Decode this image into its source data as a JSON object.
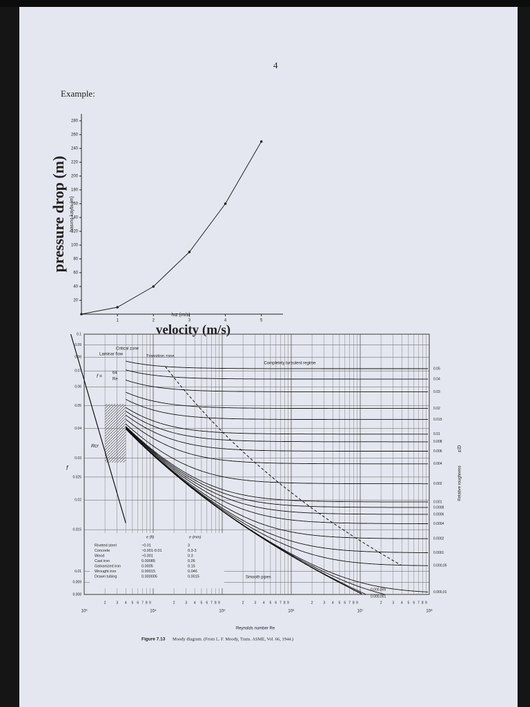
{
  "page_number": "4",
  "example_label": "Example:",
  "chart_data": [
    {
      "type": "line",
      "y_label": "pressure drop (m)",
      "y_label_small": "basınç kaybı (m)",
      "x_label": "velocity (m/s)",
      "x_label_small": "hız (m/s)",
      "x": [
        0,
        1,
        2,
        3,
        4,
        5
      ],
      "values": [
        0,
        10,
        40,
        90,
        160,
        250
      ],
      "color": "#222",
      "xlim": [
        0,
        5.6
      ],
      "ylim": [
        0,
        290
      ],
      "xticks": [
        1,
        2,
        3,
        4,
        5
      ],
      "yticks": [
        20,
        40,
        60,
        80,
        100,
        120,
        140,
        160,
        180,
        200,
        220,
        240,
        260,
        280
      ]
    },
    {
      "type": "moody",
      "log_scale": true,
      "grid": true,
      "x_label": "Reynolds number Re",
      "y_label": "f",
      "y2_label": "Relative roughness",
      "y2_label_symbol": "ε/D",
      "xlim": [
        1000,
        100000000
      ],
      "ylim": [
        0.008,
        0.1
      ],
      "xticks": [
        {
          "value": 1000,
          "label": "10³"
        },
        {
          "value": 10000,
          "label": "10⁴"
        },
        {
          "value": 100000,
          "label": "10⁵"
        },
        {
          "value": 1000000,
          "label": "10⁶"
        },
        {
          "value": 10000000,
          "label": "10⁷"
        },
        {
          "value": 100000000,
          "label": "10⁸"
        }
      ],
      "minor_tick_digits": [
        2,
        3,
        4,
        5,
        6,
        7,
        8,
        9
      ],
      "yticks": [
        0.1,
        0.09,
        0.08,
        0.07,
        0.06,
        0.05,
        0.04,
        0.03,
        0.025,
        0.02,
        0.015,
        0.01,
        0.009,
        0.008
      ],
      "roughness": [
        0.05,
        0.04,
        0.03,
        0.02,
        0.015,
        0.01,
        0.008,
        0.006,
        0.004,
        0.002,
        0.001,
        0.0008,
        0.0006,
        0.0004,
        0.0002,
        0.0001,
        {
          "value": 5e-05,
          "label": "0.000,05"
        },
        {
          "value": 1e-05,
          "label": "0.000,01"
        },
        {
          "value": 5e-06,
          "label": "0.000,005"
        },
        {
          "value": 1e-06,
          "label": "0.000,001"
        }
      ],
      "laminar_label": "Laminar flow",
      "critical_label": "Critical zone",
      "transition_label": "Transition zone",
      "turbulent_label": "Completely turbulent regime",
      "laminar_formula_f": "f =",
      "laminar_coefficient": 64,
      "laminar_formula_re": "Re",
      "critical_re_label": "Rcr",
      "smooth_label": "Smooth pipes",
      "table": {
        "headers": [
          "e (ft)",
          "e (mm)"
        ],
        "rows": [
          [
            "Riveted steel",
            "~0.01",
            "3"
          ],
          [
            "Concrete",
            "~0.001-0.01",
            "0.3-3"
          ],
          [
            "Wood",
            "~0.001",
            "0.3"
          ],
          [
            "Cast iron",
            "0.00085",
            "0.26"
          ],
          [
            "Galvanized iron",
            "0.0005",
            "0.15"
          ],
          [
            "Wrought iron",
            "0.00015",
            "0.046"
          ],
          [
            "Drawn tubing",
            "0.000005",
            "0.0015"
          ]
        ]
      },
      "caption_number": "Figure 7.13",
      "caption_text": "Moody diagram. (From L. F. Moody, Trans. ASME, Vol. 66, 1944.)"
    }
  ]
}
